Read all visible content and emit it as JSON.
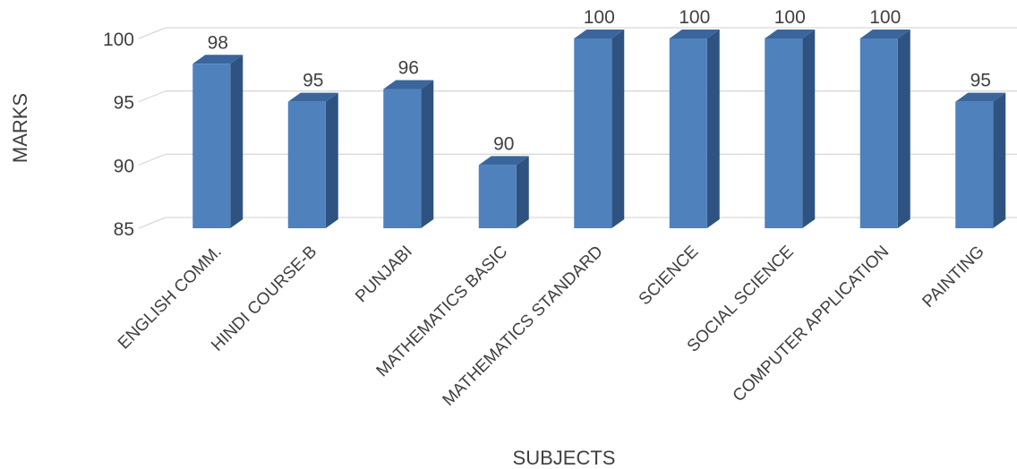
{
  "chart_data": {
    "type": "bar",
    "style": "3d-column",
    "title": "",
    "xlabel": "SUBJECTS",
    "ylabel": "MARKS",
    "ylim": [
      85,
      100
    ],
    "yticks": [
      "85",
      "90",
      "95",
      "100"
    ],
    "grid": true,
    "legend": "none",
    "bar_color": "#4f81bd",
    "categories": [
      "ENGLISH COMM.",
      "HINDI COURSE-B",
      "PUNJABI",
      "MATHEMATICS BASIC",
      "MATHEMATICS STANDARD",
      "SCIENCE",
      "SOCIAL SCIENCE",
      "COMPUTER APPLICATION",
      "PAINTING"
    ],
    "values": [
      98,
      95,
      96,
      90,
      100,
      100,
      100,
      100,
      95
    ],
    "data_labels": [
      "98",
      "95",
      "96",
      "90",
      "100",
      "100",
      "100",
      "100",
      "95"
    ]
  }
}
